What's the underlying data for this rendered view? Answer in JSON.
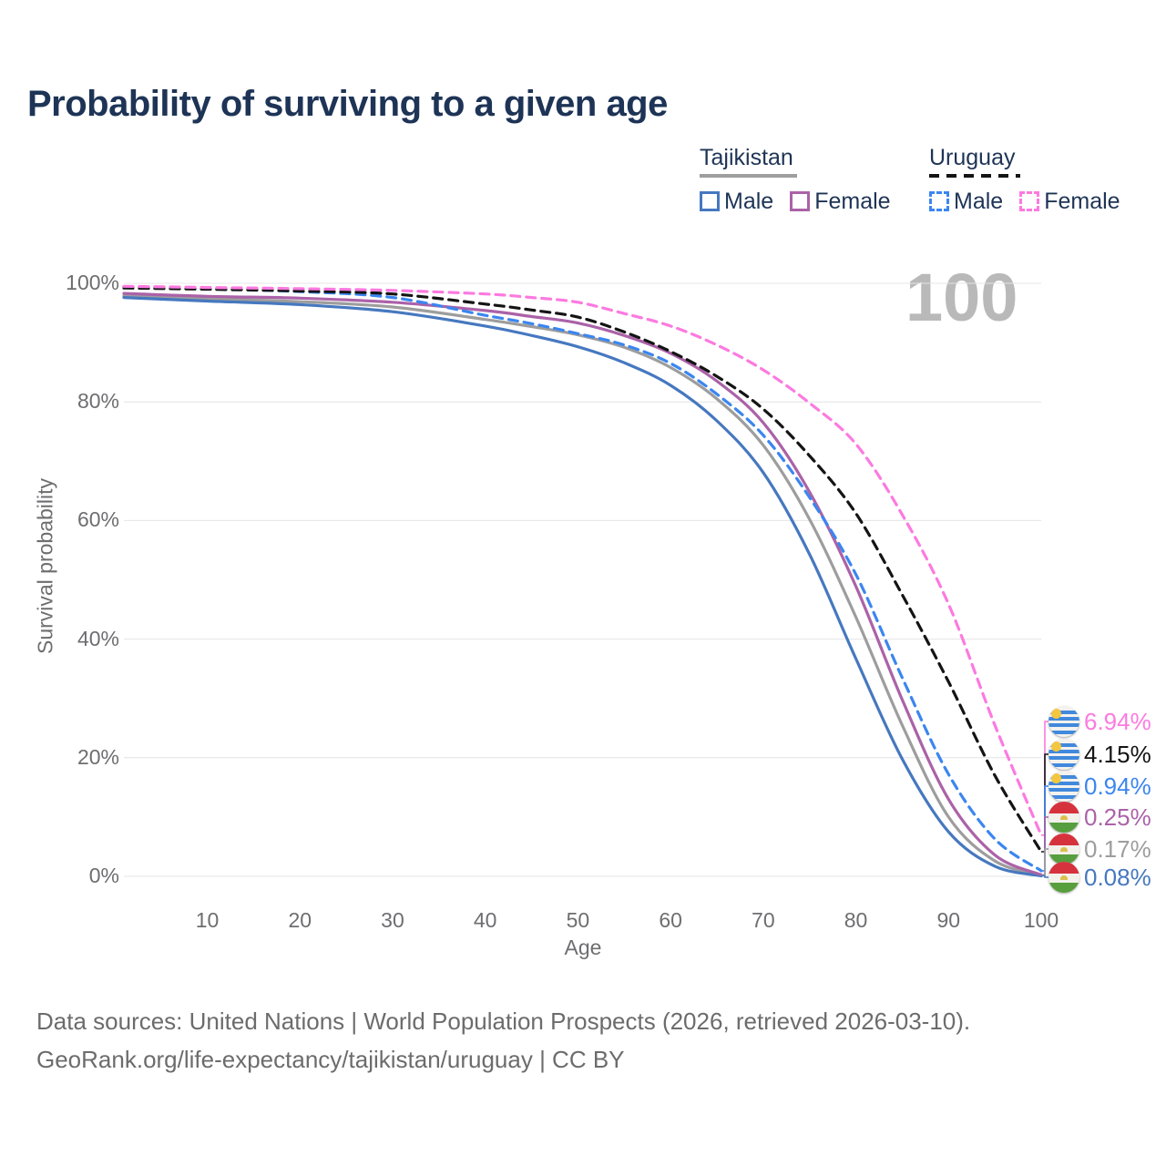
{
  "title": "Probability of surviving to a given age",
  "watermark": "100",
  "legend": {
    "groups": [
      {
        "country": "Tajikistan",
        "line_style": "solid",
        "underline_color": "#9e9e9e",
        "items": [
          {
            "label": "Male",
            "color": "#4678bf",
            "dashed": false
          },
          {
            "label": "Female",
            "color": "#ab62a8",
            "dashed": false
          }
        ]
      },
      {
        "country": "Uruguay",
        "line_style": "dashed",
        "underline_color": "#141414",
        "items": [
          {
            "label": "Male",
            "color": "#3b86f0",
            "dashed": true
          },
          {
            "label": "Female",
            "color": "#fc7ae0",
            "dashed": true
          }
        ]
      }
    ]
  },
  "chart_data": {
    "type": "line",
    "title": "Probability of surviving to a given age",
    "xlabel": "Age",
    "ylabel": "Survival probability",
    "xlim": [
      1,
      100
    ],
    "ylim": [
      0,
      100
    ],
    "grid": true,
    "x_ticks": [
      10,
      20,
      30,
      40,
      50,
      60,
      70,
      80,
      90,
      100
    ],
    "y_ticks": [
      {
        "value": 100,
        "label": "100%"
      },
      {
        "value": 80,
        "label": "80%"
      },
      {
        "value": 60,
        "label": "60%"
      },
      {
        "value": 40,
        "label": "40%"
      },
      {
        "value": 20,
        "label": "20%"
      },
      {
        "value": 0,
        "label": "0%"
      }
    ],
    "x": [
      1,
      10,
      20,
      30,
      40,
      45,
      50,
      55,
      60,
      65,
      70,
      75,
      80,
      85,
      90,
      95,
      100
    ],
    "series": [
      {
        "name": "Tajikistan (both sexes)",
        "country": "Tajikistan",
        "flag": "tajikistan",
        "color": "#9d9d9d",
        "dashed": false,
        "end_label": "0.17%",
        "values": [
          97.9,
          97.4,
          96.9,
          96.0,
          93.9,
          92.7,
          91.3,
          89.2,
          85.8,
          80.5,
          72.7,
          60.2,
          43.7,
          25.5,
          10.0,
          2.6,
          0.17
        ]
      },
      {
        "name": "Tajikistan Male",
        "country": "Tajikistan",
        "flag": "tajikistan",
        "color": "#4678bf",
        "dashed": false,
        "end_label": "0.08%",
        "values": [
          97.6,
          97.0,
          96.4,
          95.2,
          92.8,
          91.2,
          89.3,
          86.6,
          82.8,
          76.8,
          68.1,
          54.3,
          36.7,
          19.8,
          7.5,
          1.7,
          0.08
        ]
      },
      {
        "name": "Tajikistan Female",
        "country": "Tajikistan",
        "flag": "tajikistan",
        "color": "#ab62a8",
        "dashed": false,
        "end_label": "0.25%",
        "values": [
          98.3,
          97.8,
          97.5,
          96.8,
          95.4,
          94.4,
          93.3,
          91.2,
          88.2,
          83.5,
          76.5,
          64.8,
          48.9,
          29.8,
          13.0,
          3.6,
          0.25
        ]
      },
      {
        "name": "Uruguay Male",
        "country": "Uruguay",
        "flag": "uruguay",
        "color": "#3b86f0",
        "dashed": true,
        "end_label": "0.94%",
        "values": [
          99.4,
          99.1,
          98.6,
          97.6,
          94.6,
          93.2,
          91.5,
          89.6,
          86.5,
          81.3,
          74.4,
          63.9,
          50.9,
          33.5,
          17.2,
          6.3,
          0.94
        ]
      },
      {
        "name": "Uruguay (both sexes)",
        "country": "Uruguay",
        "flag": "uruguay",
        "color": "#141414",
        "dashed": true,
        "end_label": "4.15%",
        "values": [
          99.2,
          99.0,
          98.7,
          98.2,
          96.5,
          95.5,
          94.3,
          91.8,
          88.5,
          84.3,
          78.8,
          70.9,
          61.2,
          47.5,
          32.8,
          17.0,
          4.15
        ]
      },
      {
        "name": "Uruguay Female",
        "country": "Uruguay",
        "flag": "uruguay",
        "color": "#fc7ae0",
        "dashed": true,
        "end_label": "6.94%",
        "values": [
          99.5,
          99.3,
          99.1,
          98.8,
          98.2,
          97.6,
          96.8,
          94.9,
          92.8,
          89.6,
          85.4,
          79.8,
          72.9,
          61.0,
          45.9,
          25.5,
          6.94
        ]
      }
    ]
  },
  "footer": {
    "line1": "Data sources: United Nations | World Population Prospects (2026, retrieved 2026-03-10).",
    "line2": "GeoRank.org/life-expectancy/tajikistan/uruguay | CC BY"
  }
}
